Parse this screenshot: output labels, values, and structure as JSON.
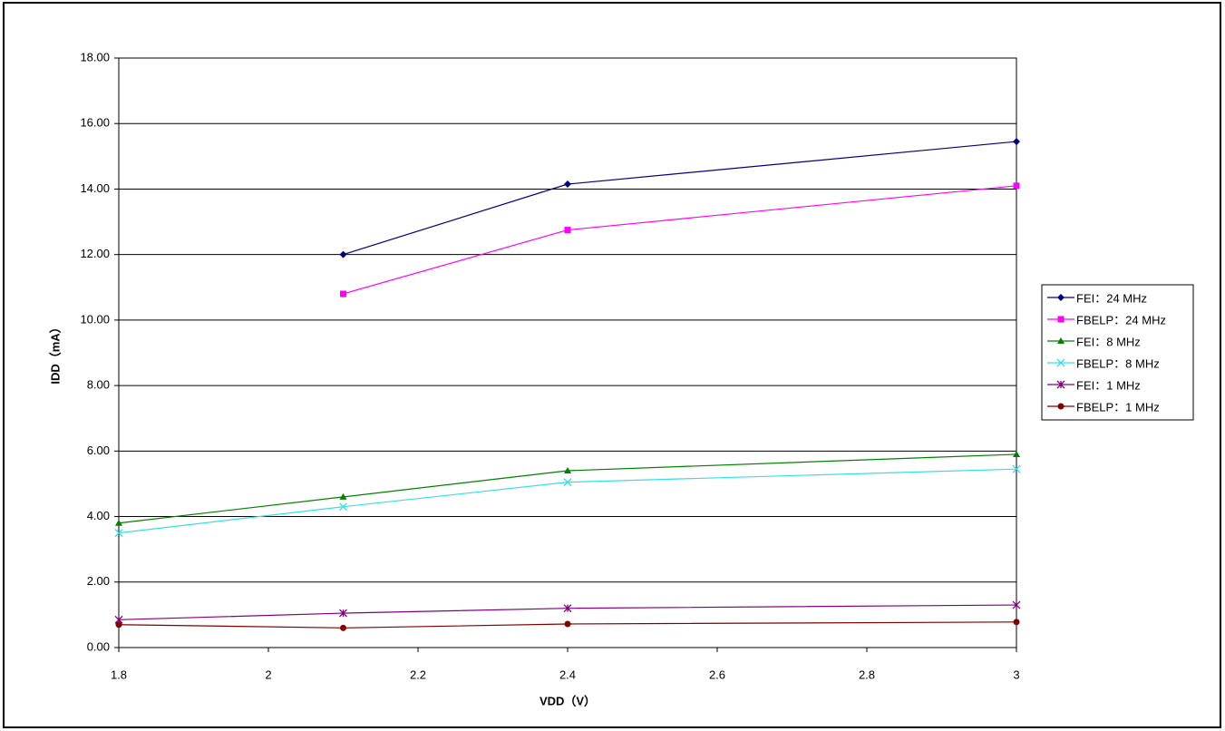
{
  "chart_data": {
    "type": "line",
    "x_label": "VDD（V）",
    "y_label": "IDD（mA）",
    "x": [
      1.8,
      2.1,
      2.4,
      3
    ],
    "xlim": [
      1.8,
      3
    ],
    "xticks": [
      1.8,
      2,
      2.2,
      2.4,
      2.6,
      2.8,
      3
    ],
    "ylim": [
      0,
      18
    ],
    "yticks": [
      {
        "value": 0,
        "label": "0.00"
      },
      {
        "value": 2,
        "label": "2.00"
      },
      {
        "value": 4,
        "label": "4.00"
      },
      {
        "value": 6,
        "label": "6.00"
      },
      {
        "value": 8,
        "label": "8.00"
      },
      {
        "value": 10,
        "label": "10.00"
      },
      {
        "value": 12,
        "label": "12.00"
      },
      {
        "value": 14,
        "label": "14.00"
      },
      {
        "value": 16,
        "label": "16.00"
      },
      {
        "value": 18,
        "label": "18.00"
      }
    ],
    "grid": true,
    "legend": "right",
    "series": [
      {
        "name": "FEI：24 MHz",
        "color": "#000080",
        "marker": "diamond",
        "values": [
          null,
          12.0,
          14.15,
          15.45
        ]
      },
      {
        "name": "FBELP：24 MHz",
        "color": "#ff00ff",
        "marker": "square",
        "values": [
          null,
          10.8,
          12.75,
          14.1
        ]
      },
      {
        "name": "FEI：8 MHz",
        "color": "#008000",
        "marker": "triangle",
        "values": [
          3.8,
          4.6,
          5.4,
          5.9
        ]
      },
      {
        "name": "FBELP：8 MHz",
        "color": "#33e0e8",
        "marker": "x",
        "values": [
          3.5,
          4.3,
          5.05,
          5.45
        ]
      },
      {
        "name": "FEI：1 MHz",
        "color": "#800080",
        "marker": "star",
        "values": [
          0.85,
          1.05,
          1.2,
          1.3
        ]
      },
      {
        "name": "FBELP：1 MHz",
        "color": "#800000",
        "marker": "circle",
        "values": [
          0.7,
          0.6,
          0.72,
          0.78
        ]
      }
    ]
  }
}
